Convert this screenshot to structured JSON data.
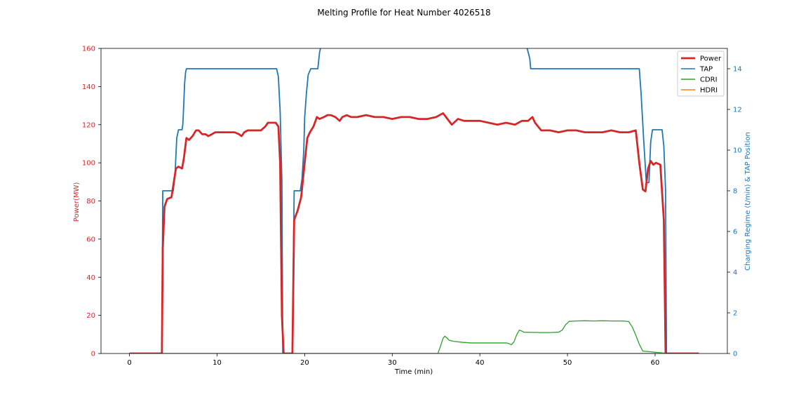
{
  "colors": {
    "power": "#d62728",
    "tap": "#1f77b4",
    "cdri": "#2ca02c",
    "hdri": "#ff7f0e"
  },
  "chart_data": {
    "type": "line",
    "title": "Melting Profile for Heat Number 4026518",
    "xlabel": "Time (min)",
    "ylabel_left": "Power(MW)",
    "ylabel_right": "Charging Regime (t/min) & TAP Position",
    "xlim": [
      -3.25,
      68.25
    ],
    "ylim_left": [
      0,
      160
    ],
    "ylim_right": [
      0,
      15
    ],
    "x_ticks": [
      0,
      10,
      20,
      30,
      40,
      50,
      60
    ],
    "y_ticks_left": [
      0,
      20,
      40,
      60,
      80,
      100,
      120,
      140,
      160
    ],
    "y_ticks_right": [
      0,
      2,
      4,
      6,
      8,
      10,
      12,
      14
    ],
    "grid": false,
    "legend_position": "top-right",
    "series": [
      {
        "name": "Power",
        "axis": "left",
        "x": [
          0,
          3.7,
          3.8,
          4.0,
          4.3,
          4.8,
          5.0,
          5.3,
          5.6,
          6.0,
          6.2,
          6.5,
          6.8,
          7.2,
          7.6,
          7.9,
          8.3,
          8.7,
          9.0,
          9.4,
          9.8,
          10.2,
          11,
          12,
          12.5,
          12.8,
          13.1,
          13.5,
          14,
          15,
          15.5,
          15.8,
          16.2,
          16.7,
          17.0,
          17.2,
          17.4,
          17.6,
          17.8,
          18.0,
          18.6,
          18.8,
          19.2,
          19.6,
          20.0,
          20.3,
          20.6,
          21.0,
          21.4,
          21.7,
          22.2,
          22.6,
          23.0,
          23.5,
          24.0,
          24.3,
          24.8,
          25.3,
          26,
          27,
          28,
          29,
          30,
          31,
          32,
          33,
          34,
          35,
          35.8,
          36.3,
          36.8,
          37.5,
          38.2,
          39,
          39.6,
          40,
          41,
          42,
          43,
          44,
          44.8,
          45.5,
          46.0,
          46.3,
          47,
          48,
          49,
          50,
          51,
          52,
          53,
          54,
          55,
          56,
          57,
          57.8,
          58.2,
          58.6,
          58.9,
          59.2,
          59.5,
          59.8,
          60.1,
          60.6,
          61.0,
          61.2,
          61.3,
          65
        ],
        "values": [
          0,
          0,
          55,
          77,
          81,
          82,
          88,
          97,
          98,
          97,
          102,
          113,
          112,
          114,
          117,
          117,
          115,
          115,
          114,
          115,
          116,
          116,
          116,
          116,
          115,
          114,
          116,
          117,
          117,
          117,
          119,
          121,
          121,
          121,
          119,
          100,
          20,
          0,
          0,
          0,
          0,
          70,
          75,
          82,
          100,
          113,
          116,
          119,
          124,
          123,
          124,
          125,
          125,
          124,
          122,
          124,
          125,
          124,
          124,
          125,
          124,
          124,
          123,
          124,
          124,
          123,
          123,
          124,
          126,
          123,
          120,
          123,
          122,
          122,
          122,
          122,
          121,
          120,
          121,
          120,
          122,
          122,
          124,
          121,
          117,
          117,
          116,
          117,
          117,
          116,
          116,
          116,
          117,
          116,
          116,
          117,
          100,
          86,
          85,
          97,
          101,
          99,
          100,
          99,
          70,
          0,
          0,
          0
        ]
      },
      {
        "name": "TAP",
        "axis": "right",
        "x": [
          0,
          3.7,
          3.8,
          5.0,
          5.2,
          5.4,
          5.6,
          6.0,
          6.1,
          6.2,
          6.3,
          6.4,
          6.5,
          6.8,
          16.8,
          17.0,
          17.2,
          17.4,
          17.5,
          18.6,
          18.8,
          19.5,
          19.7,
          19.9,
          20.0,
          20.2,
          20.4,
          20.7,
          21.5,
          21.7,
          21.9,
          22.1,
          22.3,
          44.8,
          45.0,
          45.4,
          45.7,
          45.8,
          58.2,
          58.4,
          58.7,
          59.0,
          59.3,
          59.5,
          59.7,
          60.8,
          61.0,
          61.2,
          61.3,
          65
        ],
        "values": [
          0,
          0,
          8,
          8,
          8.8,
          10.6,
          11.0,
          11.0,
          11.3,
          12.3,
          13.3,
          13.8,
          14.0,
          14.0,
          14.0,
          13.6,
          11.9,
          8.5,
          0,
          0,
          8,
          8,
          8.6,
          10.0,
          11.6,
          12.8,
          13.7,
          14.0,
          14.0,
          14.8,
          15.2,
          15.4,
          15.6,
          15.6,
          15.3,
          15.0,
          14.5,
          14.0,
          14.0,
          12.8,
          10.5,
          8.4,
          8.4,
          10.4,
          11.0,
          11.0,
          10.2,
          8.0,
          0,
          0
        ]
      },
      {
        "name": "CDRI",
        "axis": "right",
        "x": [
          0,
          35.2,
          35.5,
          35.8,
          36.0,
          36.2,
          36.5,
          37.0,
          38.0,
          39.0,
          40,
          41,
          42,
          43,
          43.3,
          43.6,
          43.9,
          44.2,
          44.5,
          44.8,
          45.0,
          46,
          47,
          48,
          49,
          49.4,
          49.8,
          50.2,
          51,
          52,
          53,
          54,
          55,
          56,
          56.6,
          57.0,
          57.4,
          57.8,
          58.2,
          58.6,
          61.5
        ],
        "values": [
          0,
          0,
          0.35,
          0.75,
          0.85,
          0.78,
          0.65,
          0.6,
          0.55,
          0.52,
          0.52,
          0.52,
          0.52,
          0.52,
          0.49,
          0.43,
          0.58,
          0.92,
          1.15,
          1.1,
          1.05,
          1.04,
          1.03,
          1.03,
          1.05,
          1.15,
          1.42,
          1.58,
          1.6,
          1.61,
          1.6,
          1.61,
          1.6,
          1.6,
          1.59,
          1.57,
          1.3,
          0.9,
          0.45,
          0.12,
          0
        ]
      },
      {
        "name": "HDRI",
        "axis": "right",
        "x": [
          0,
          65
        ],
        "values": [
          0,
          0
        ]
      }
    ]
  }
}
